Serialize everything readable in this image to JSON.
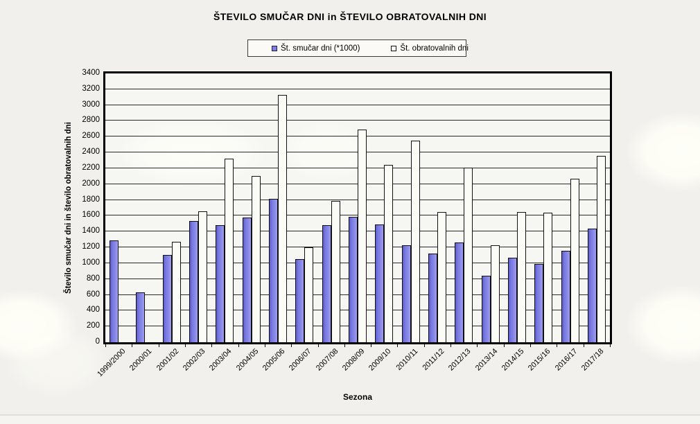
{
  "page": {
    "background_color": "#f1f0ec",
    "watermark": "faint white leaf shapes"
  },
  "colors": {
    "skier_days_bar": "#7d7de4",
    "operating_days_bar": "#fcfcf6",
    "gridline": "#2a2a2a",
    "plot_border": "#000000"
  },
  "chart_data": {
    "type": "bar",
    "title": "ŠTEVILO SMUČAR DNI in ŠTEVILO OBRATOVALNIH DNI",
    "xlabel": "Sezona",
    "ylabel": "Število smučar dni in število obratovalnih dni",
    "ylim": [
      0,
      3400
    ],
    "ytick_step": 200,
    "grid": true,
    "legend_position": "top-center",
    "categories": [
      "1999/2000",
      "2000/01",
      "2001/02",
      "2002/03",
      "2003/04",
      "2004/05",
      "2005/06",
      "2006/07",
      "2007/08",
      "2008/09",
      "2009/10",
      "2010/11",
      "2011/12",
      "2012/13",
      "2013/14",
      "2014/15",
      "2015/16",
      "2016/17",
      "2017/18"
    ],
    "series": [
      {
        "name": "Št. smučar dni (*1000)",
        "color": "#7d7de4",
        "values": [
          1290,
          630,
          1100,
          1530,
          1480,
          1580,
          1810,
          1050,
          1480,
          1590,
          1490,
          1230,
          1120,
          1260,
          840,
          1070,
          990,
          1160,
          1440
        ]
      },
      {
        "name": "Št. obratovalnih dni",
        "color": "#fcfcf6",
        "values": [
          null,
          null,
          1270,
          1660,
          2320,
          2100,
          3130,
          1200,
          1790,
          2690,
          2240,
          2550,
          1650,
          2210,
          1230,
          1650,
          1640,
          2070,
          2360
        ]
      }
    ]
  }
}
